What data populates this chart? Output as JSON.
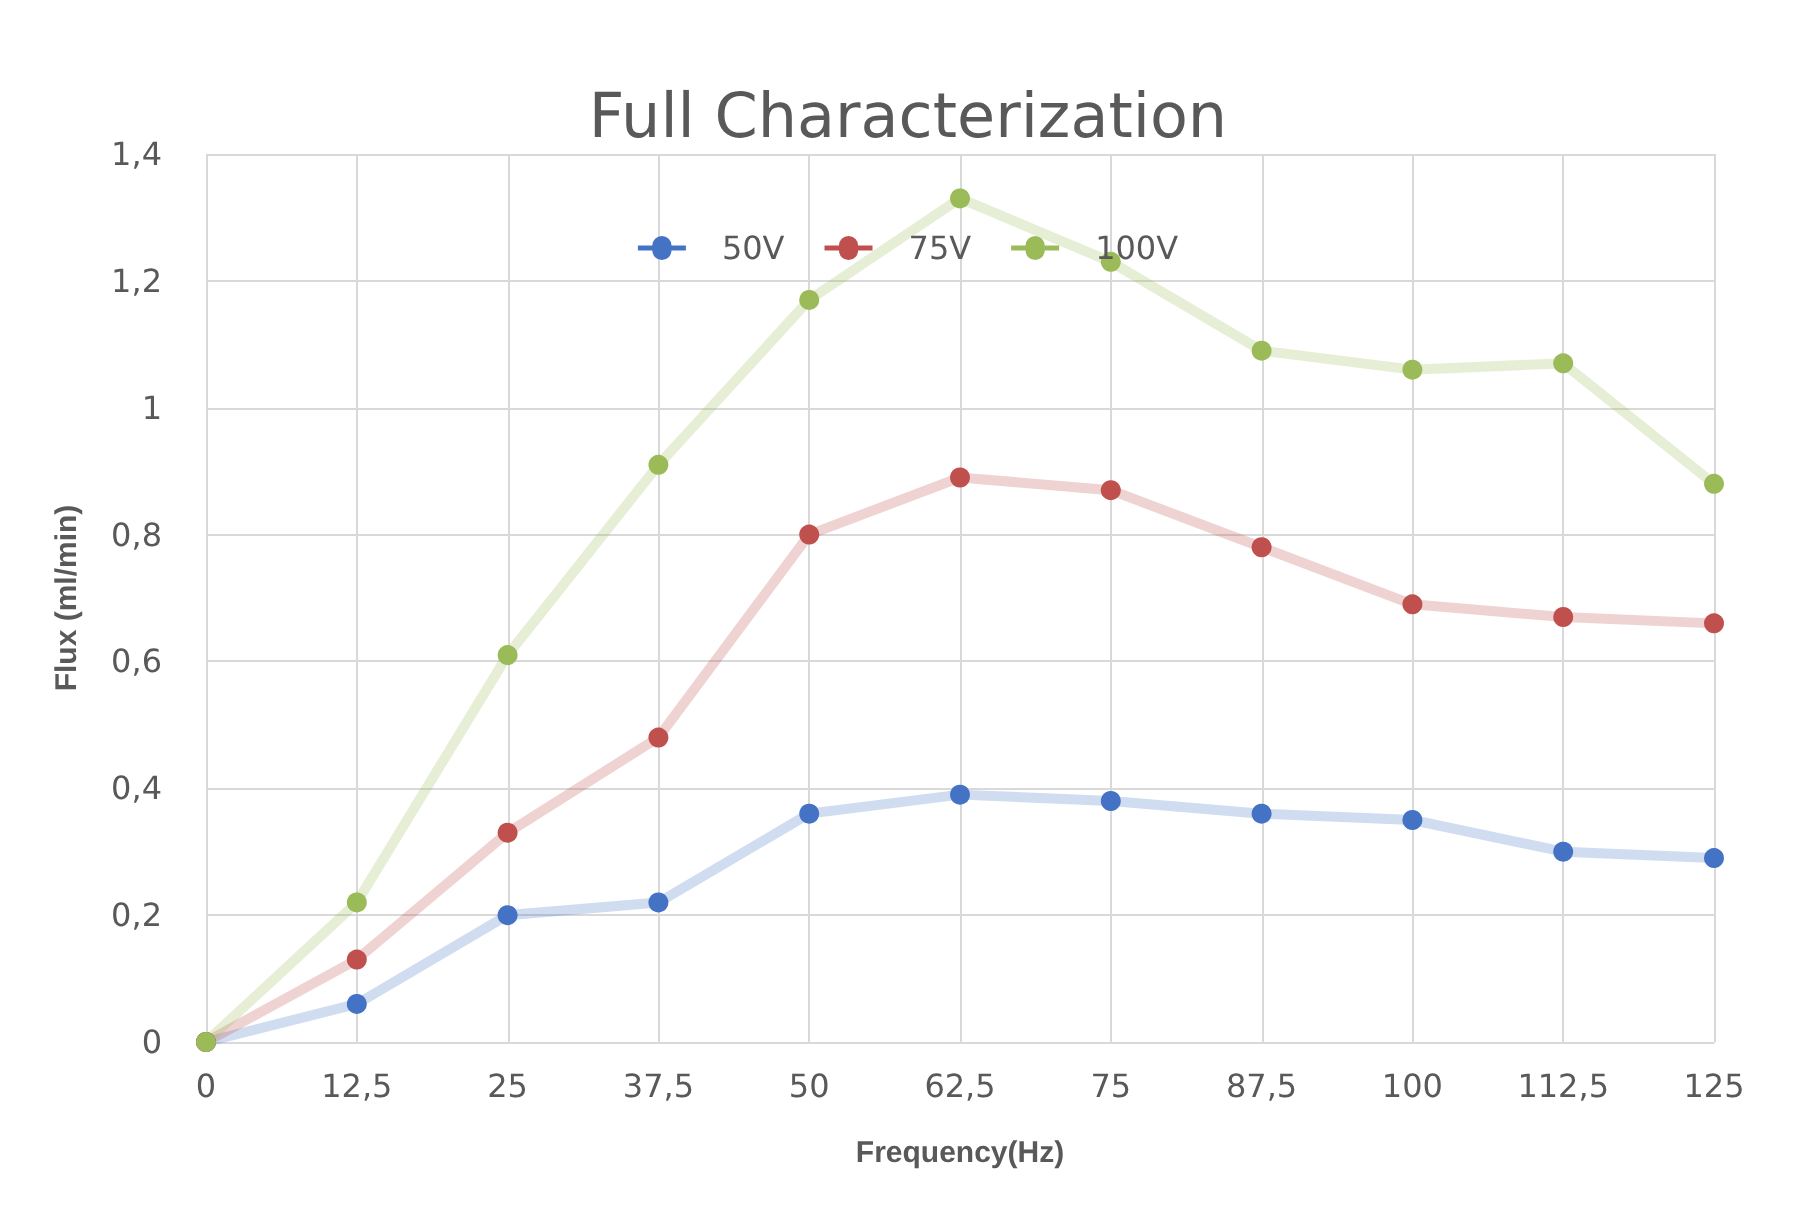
{
  "chart_data": {
    "type": "line",
    "title": "Full Characterization",
    "xlabel": "Frequency(Hz)",
    "ylabel": "Flux (ml/min)",
    "categories": [
      "0",
      "12,5",
      "25",
      "37,5",
      "50",
      "62,5",
      "75",
      "87,5",
      "100",
      "112,5",
      "125"
    ],
    "series": [
      {
        "name": "50V",
        "color": "#4472c4",
        "values": [
          0,
          0.06,
          0.2,
          0.22,
          0.36,
          0.39,
          0.38,
          0.36,
          0.35,
          0.3,
          0.29
        ]
      },
      {
        "name": "75V",
        "color": "#c0504d",
        "values": [
          0,
          0.13,
          0.33,
          0.48,
          0.8,
          0.89,
          0.87,
          0.78,
          0.69,
          0.67,
          0.66
        ]
      },
      {
        "name": "100V",
        "color": "#9bbb59",
        "values": [
          0,
          0.22,
          0.61,
          0.91,
          1.17,
          1.33,
          1.23,
          1.09,
          1.06,
          1.07,
          0.88
        ]
      }
    ],
    "ylim": [
      0,
      1.4
    ],
    "yticks": [
      0,
      {
        "value": 0.2,
        "label": "0,2"
      },
      {
        "value": 0.4,
        "label": "0,4"
      },
      {
        "value": 0.6,
        "label": "0,6"
      },
      {
        "value": 0.8,
        "label": "0,8"
      },
      1,
      {
        "value": 1.2,
        "label": "1,2"
      },
      {
        "value": 1.4,
        "label": "1,4"
      }
    ],
    "grid": true,
    "legend": "top",
    "marker": "circle",
    "line_style": "solid"
  }
}
